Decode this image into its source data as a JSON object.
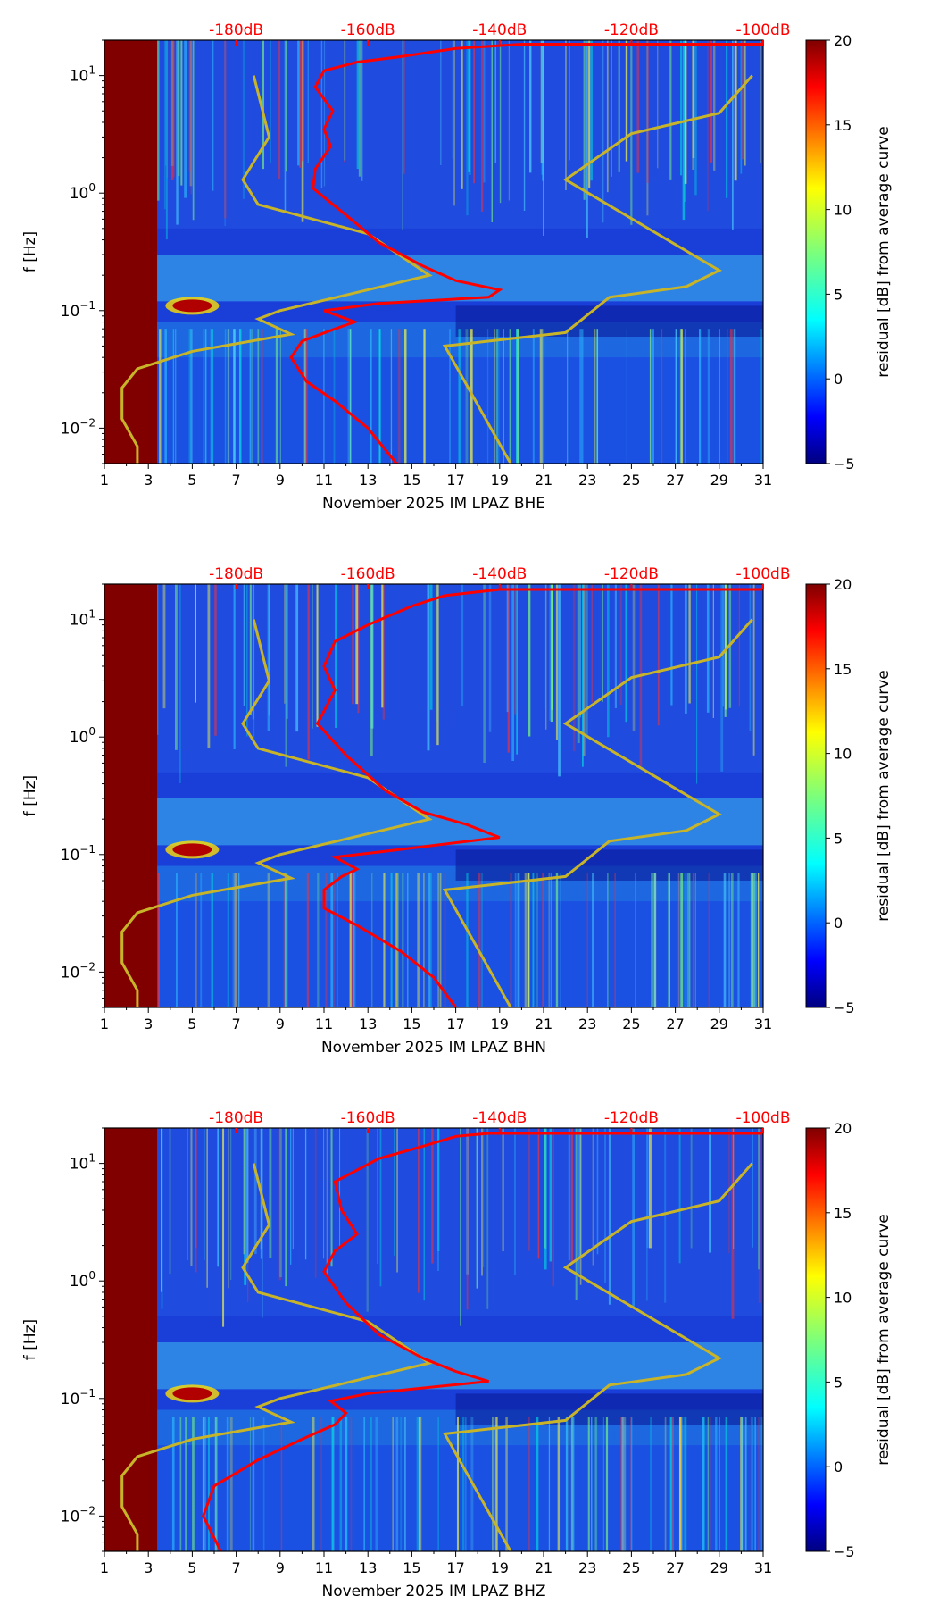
{
  "colors": {
    "noise_curve": "#c8b428",
    "avg_curve": "#ff0000",
    "no_data": "#800000",
    "db_label": "#ff0000"
  },
  "chart_data": [
    {
      "type": "heatmap",
      "title": "",
      "xlabel": "November 2025 IM LPAZ  BHE",
      "ylabel": "f [Hz]",
      "x_ticks": [
        "1",
        "3",
        "5",
        "7",
        "9",
        "11",
        "13",
        "15",
        "17",
        "19",
        "21",
        "23",
        "25",
        "27",
        "29",
        "31"
      ],
      "xlim": [
        1,
        31
      ],
      "y_ticks": [
        "10^-2",
        "10^-1",
        "10^0",
        "10^1"
      ],
      "ylim_hz": [
        0.005,
        20
      ],
      "db_scale_labels": [
        "-180dB",
        "-160dB",
        "-140dB",
        "-120dB",
        "-100dB"
      ],
      "colorbar": {
        "label": "residual [dB] from average curve",
        "ticks": [
          "20",
          "15",
          "10",
          "5",
          "0",
          "−5"
        ],
        "range": [
          -5,
          20
        ]
      },
      "no_data_days": [
        1,
        3.4
      ],
      "noise_curves": {
        "low_model": [
          [
            2.5,
            0.005
          ],
          [
            2.5,
            0.007
          ],
          [
            1.8,
            0.012
          ],
          [
            1.8,
            0.022
          ],
          [
            2.5,
            0.032
          ],
          [
            5.0,
            0.045
          ],
          [
            9.5,
            0.063
          ],
          [
            8.0,
            0.085
          ],
          [
            9.0,
            0.1
          ],
          [
            15.8,
            0.2
          ],
          [
            13.0,
            0.45
          ],
          [
            8.0,
            0.8
          ],
          [
            7.3,
            1.3
          ],
          [
            8.5,
            3.0
          ],
          [
            7.8,
            10.0
          ]
        ],
        "high_model": [
          [
            19.5,
            0.005
          ],
          [
            16.5,
            0.05
          ],
          [
            22.0,
            0.065
          ],
          [
            24.0,
            0.13
          ],
          [
            27.5,
            0.16
          ],
          [
            29.0,
            0.22
          ],
          [
            22.0,
            1.3
          ],
          [
            25.0,
            3.2
          ],
          [
            29.0,
            4.8
          ],
          [
            30.5,
            10.0
          ]
        ]
      },
      "average_curve": [
        [
          14.3,
          0.005
        ],
        [
          13.0,
          0.01
        ],
        [
          11.5,
          0.017
        ],
        [
          10.2,
          0.025
        ],
        [
          9.5,
          0.04
        ],
        [
          10.0,
          0.055
        ],
        [
          11.5,
          0.07
        ],
        [
          12.4,
          0.08
        ],
        [
          11.0,
          0.1
        ],
        [
          13.5,
          0.115
        ],
        [
          18.5,
          0.13
        ],
        [
          19.0,
          0.15
        ],
        [
          17.0,
          0.18
        ],
        [
          15.5,
          0.24
        ],
        [
          13.5,
          0.38
        ],
        [
          12.0,
          0.65
        ],
        [
          10.5,
          1.1
        ],
        [
          10.6,
          1.6
        ],
        [
          11.3,
          2.5
        ],
        [
          11.0,
          3.5
        ],
        [
          11.4,
          5.0
        ],
        [
          10.6,
          8.0
        ],
        [
          11.0,
          11.0
        ],
        [
          12.5,
          13.0
        ],
        [
          14.5,
          14.5
        ],
        [
          17.0,
          17.0
        ],
        [
          20.0,
          18.5
        ],
        [
          31.0,
          18.5
        ]
      ]
    },
    {
      "type": "heatmap",
      "title": "",
      "xlabel": "November 2025 IM LPAZ  BHN",
      "ylabel": "f [Hz]",
      "x_ticks": [
        "1",
        "3",
        "5",
        "7",
        "9",
        "11",
        "13",
        "15",
        "17",
        "19",
        "21",
        "23",
        "25",
        "27",
        "29",
        "31"
      ],
      "xlim": [
        1,
        31
      ],
      "y_ticks": [
        "10^-2",
        "10^-1",
        "10^0",
        "10^1"
      ],
      "ylim_hz": [
        0.005,
        20
      ],
      "db_scale_labels": [
        "-180dB",
        "-160dB",
        "-140dB",
        "-120dB",
        "-100dB"
      ],
      "colorbar": {
        "label": "residual [dB] from average curve",
        "ticks": [
          "20",
          "15",
          "10",
          "5",
          "0",
          "−5"
        ],
        "range": [
          -5,
          20
        ]
      },
      "no_data_days": [
        1,
        3.4
      ],
      "noise_curves": {
        "low_model": [
          [
            2.5,
            0.005
          ],
          [
            2.5,
            0.007
          ],
          [
            1.8,
            0.012
          ],
          [
            1.8,
            0.022
          ],
          [
            2.5,
            0.032
          ],
          [
            5.0,
            0.045
          ],
          [
            9.5,
            0.063
          ],
          [
            8.0,
            0.085
          ],
          [
            9.0,
            0.1
          ],
          [
            15.8,
            0.2
          ],
          [
            13.0,
            0.45
          ],
          [
            8.0,
            0.8
          ],
          [
            7.3,
            1.3
          ],
          [
            8.5,
            3.0
          ],
          [
            7.8,
            10.0
          ]
        ],
        "high_model": [
          [
            19.5,
            0.005
          ],
          [
            16.5,
            0.05
          ],
          [
            22.0,
            0.065
          ],
          [
            24.0,
            0.13
          ],
          [
            27.5,
            0.16
          ],
          [
            29.0,
            0.22
          ],
          [
            22.0,
            1.3
          ],
          [
            25.0,
            3.2
          ],
          [
            29.0,
            4.8
          ],
          [
            30.5,
            10.0
          ]
        ]
      },
      "average_curve": [
        [
          17.0,
          0.005
        ],
        [
          16.0,
          0.009
        ],
        [
          14.5,
          0.015
        ],
        [
          12.5,
          0.025
        ],
        [
          11.0,
          0.035
        ],
        [
          11.0,
          0.05
        ],
        [
          11.8,
          0.065
        ],
        [
          12.5,
          0.075
        ],
        [
          11.5,
          0.095
        ],
        [
          13.5,
          0.105
        ],
        [
          19.0,
          0.14
        ],
        [
          17.5,
          0.18
        ],
        [
          15.5,
          0.23
        ],
        [
          13.8,
          0.35
        ],
        [
          12.0,
          0.7
        ],
        [
          10.7,
          1.3
        ],
        [
          11.5,
          2.5
        ],
        [
          11.0,
          4.0
        ],
        [
          11.5,
          6.5
        ],
        [
          13.0,
          9.0
        ],
        [
          15.0,
          13.0
        ],
        [
          16.5,
          16.0
        ],
        [
          19.0,
          18.0
        ],
        [
          31.0,
          18.0
        ]
      ]
    },
    {
      "type": "heatmap",
      "title": "",
      "xlabel": "November 2025 IM LPAZ  BHZ",
      "ylabel": "f [Hz]",
      "x_ticks": [
        "1",
        "3",
        "5",
        "7",
        "9",
        "11",
        "13",
        "15",
        "17",
        "19",
        "21",
        "23",
        "25",
        "27",
        "29",
        "31"
      ],
      "xlim": [
        1,
        31
      ],
      "y_ticks": [
        "10^-2",
        "10^-1",
        "10^0",
        "10^1"
      ],
      "ylim_hz": [
        0.005,
        20
      ],
      "db_scale_labels": [
        "-180dB",
        "-160dB",
        "-140dB",
        "-120dB",
        "-100dB"
      ],
      "colorbar": {
        "label": "residual [dB] from average curve",
        "ticks": [
          "20",
          "15",
          "10",
          "5",
          "0",
          "−5"
        ],
        "range": [
          -5,
          20
        ]
      },
      "no_data_days": [
        1,
        3.4
      ],
      "noise_curves": {
        "low_model": [
          [
            2.5,
            0.005
          ],
          [
            2.5,
            0.007
          ],
          [
            1.8,
            0.012
          ],
          [
            1.8,
            0.022
          ],
          [
            2.5,
            0.032
          ],
          [
            5.0,
            0.045
          ],
          [
            9.5,
            0.063
          ],
          [
            8.0,
            0.085
          ],
          [
            9.0,
            0.1
          ],
          [
            15.8,
            0.2
          ],
          [
            13.0,
            0.45
          ],
          [
            8.0,
            0.8
          ],
          [
            7.3,
            1.3
          ],
          [
            8.5,
            3.0
          ],
          [
            7.8,
            10.0
          ]
        ],
        "high_model": [
          [
            19.5,
            0.005
          ],
          [
            16.5,
            0.05
          ],
          [
            22.0,
            0.065
          ],
          [
            24.0,
            0.13
          ],
          [
            27.5,
            0.16
          ],
          [
            29.0,
            0.22
          ],
          [
            22.0,
            1.3
          ],
          [
            25.0,
            3.2
          ],
          [
            29.0,
            4.8
          ],
          [
            30.5,
            10.0
          ]
        ]
      },
      "average_curve": [
        [
          6.3,
          0.005
        ],
        [
          5.5,
          0.01
        ],
        [
          6.0,
          0.018
        ],
        [
          8.0,
          0.03
        ],
        [
          10.0,
          0.045
        ],
        [
          11.5,
          0.06
        ],
        [
          12.0,
          0.075
        ],
        [
          11.3,
          0.095
        ],
        [
          13.0,
          0.11
        ],
        [
          18.5,
          0.14
        ],
        [
          17.0,
          0.17
        ],
        [
          15.5,
          0.22
        ],
        [
          13.5,
          0.35
        ],
        [
          12.0,
          0.65
        ],
        [
          11.0,
          1.2
        ],
        [
          11.5,
          1.8
        ],
        [
          12.5,
          2.5
        ],
        [
          11.8,
          4.0
        ],
        [
          11.5,
          7.0
        ],
        [
          13.5,
          11.0
        ],
        [
          15.5,
          14.0
        ],
        [
          17.0,
          17.0
        ],
        [
          18.5,
          18.0
        ],
        [
          31.0,
          18.0
        ]
      ]
    }
  ]
}
